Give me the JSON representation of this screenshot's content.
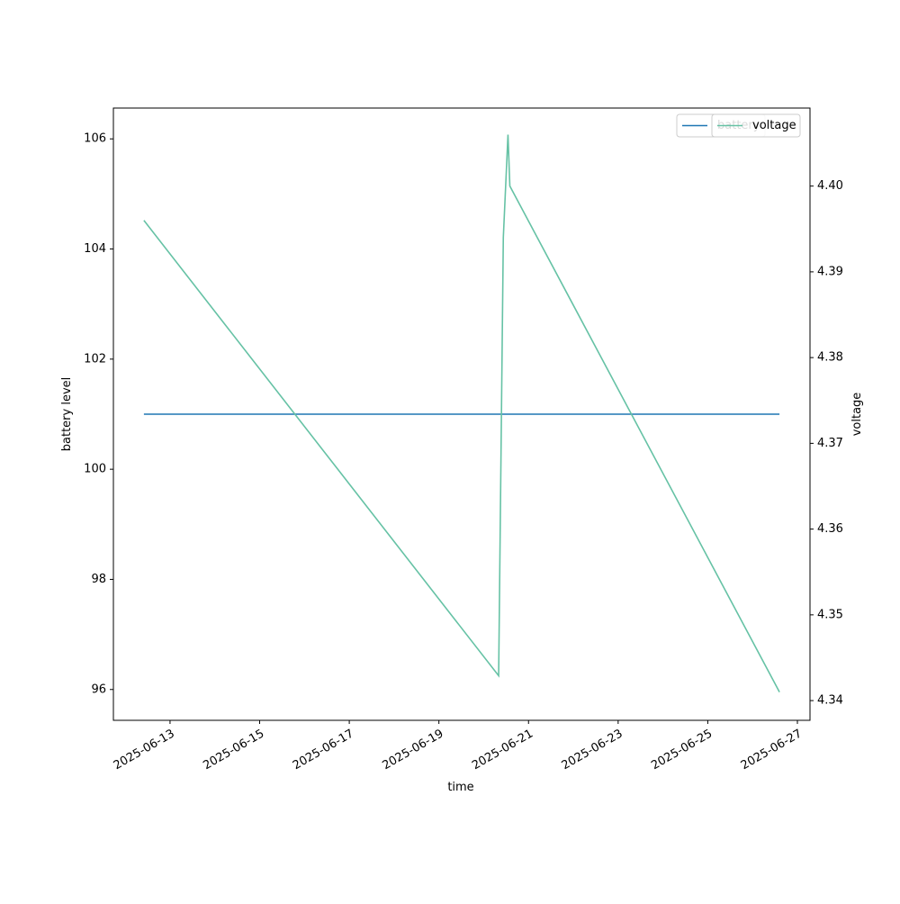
{
  "chart_data": {
    "type": "line",
    "xlabel": "time",
    "ylabel": "battery level",
    "y2label": "voltage",
    "xlim": [
      "2025-06-11T17:40",
      "2025-06-27T06:45"
    ],
    "xticks": [
      "2025-06-13",
      "2025-06-15",
      "2025-06-17",
      "2025-06-19",
      "2025-06-21",
      "2025-06-23",
      "2025-06-25",
      "2025-06-27"
    ],
    "ylim": [
      95.44,
      106.56
    ],
    "yticks": [
      96,
      98,
      100,
      102,
      104,
      106
    ],
    "y2lim": [
      4.3377,
      4.4091
    ],
    "y2ticks": [
      4.34,
      4.35,
      4.36,
      4.37,
      4.38,
      4.39,
      4.4
    ],
    "legend": "upper right",
    "series": [
      {
        "name": "battery",
        "color": "#1f77b4",
        "x": [
          "2025-06-12T10:00",
          "2025-06-26T14:24"
        ],
        "values": [
          101,
          101
        ]
      },
      {
        "name": "voltage",
        "color": "#66c2a5",
        "axis": "y2",
        "x": [
          "2025-06-12T10:00",
          "2025-06-20T08:00",
          "2025-06-20T10:30",
          "2025-06-20T13:00",
          "2025-06-20T14:00",
          "2025-06-26T14:24"
        ],
        "values": [
          4.396,
          4.3429,
          4.394,
          4.406,
          4.4,
          4.341
        ]
      }
    ]
  }
}
